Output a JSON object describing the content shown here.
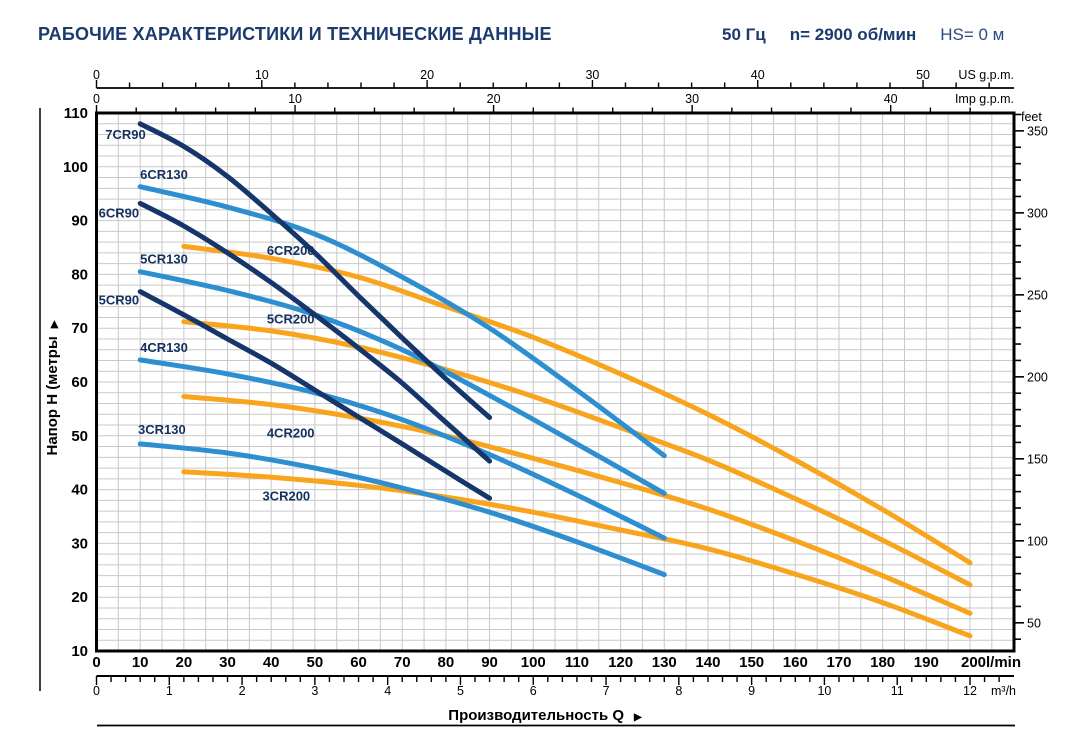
{
  "header": {
    "title": "РАБОЧИЕ ХАРАКТЕРИСТИКИ И ТЕХНИЧЕСКИЕ ДАННЫЕ",
    "frequency": "50 Гц",
    "speed": "n= 2900 об/мин",
    "suction_head": "HS= 0 м"
  },
  "colors": {
    "navy": "#15356B",
    "blue": "#2E8FD0",
    "orange": "#F8A41D",
    "label": "#14305F",
    "grid": "#C9C9C9",
    "axis": "#000000",
    "header_blue": "#1B3A6E"
  },
  "chart_data": {
    "type": "line",
    "xlabel": "Производительность Q",
    "ylabel": "Напор H (метры",
    "arrow": "▶",
    "x_unit": "l/min",
    "xlim_lmin": [
      0,
      210
    ],
    "ylim_m": [
      10,
      110
    ],
    "grid": {
      "x_step_lmin": 5,
      "y_step_m": 2
    },
    "y_axis": {
      "ticks": [
        10,
        20,
        30,
        40,
        50,
        60,
        70,
        80,
        90,
        100,
        110
      ]
    },
    "feet_axis": {
      "label": "feet",
      "major_ticks": [
        50,
        100,
        150,
        200,
        250,
        300,
        350
      ],
      "minor_step": 10,
      "minor_range": [
        40,
        360
      ],
      "m_per_foot": 0.3048
    },
    "us_axis": {
      "label": "US g.p.m.",
      "major_ticks": [
        0,
        10,
        20,
        30,
        40,
        50
      ],
      "minor_step": 2,
      "minor_max": 54,
      "lmin_per_unit": 3.785
    },
    "imp_axis": {
      "label": "Imp g.p.m.",
      "major_ticks": [
        0,
        10,
        20,
        30,
        40
      ],
      "minor_step": 2,
      "minor_max": 44,
      "lmin_per_unit": 4.546
    },
    "lmin_axis": {
      "tick_labels": [
        0,
        10,
        20,
        30,
        40,
        50,
        60,
        70,
        80,
        90,
        100,
        110,
        120,
        130,
        140,
        150,
        160,
        170,
        180,
        190
      ],
      "last_label": "200l/min"
    },
    "m3h_axis": {
      "label": "m³/h",
      "major_ticks": [
        0,
        1,
        2,
        3,
        4,
        5,
        6,
        7,
        8,
        9,
        10,
        11,
        12
      ],
      "minor_step": 0.2,
      "minor_max": 12.4,
      "lmin_per_unit": 16.6667
    },
    "series": [
      {
        "name": "3CR200",
        "color": "orange",
        "label_pos": [
          38,
          38.0
        ],
        "points": [
          [
            20,
            43.3
          ],
          [
            40,
            42.3
          ],
          [
            60,
            40.8
          ],
          [
            80,
            38.6
          ],
          [
            100,
            35.8
          ],
          [
            120,
            32.5
          ],
          [
            140,
            29
          ],
          [
            160,
            24.3
          ],
          [
            180,
            19
          ],
          [
            200,
            12.8
          ]
        ]
      },
      {
        "name": "4CR200",
        "color": "orange",
        "label_pos": [
          39,
          49.7
        ],
        "points": [
          [
            20,
            57.3
          ],
          [
            40,
            55.8
          ],
          [
            60,
            53.3
          ],
          [
            80,
            50
          ],
          [
            100,
            45.8
          ],
          [
            120,
            41.3
          ],
          [
            140,
            36.4
          ],
          [
            160,
            30.5
          ],
          [
            180,
            24
          ],
          [
            200,
            17
          ]
        ]
      },
      {
        "name": "5CR200",
        "color": "orange",
        "label_pos": [
          39,
          70.9
        ],
        "points": [
          [
            20,
            71.2
          ],
          [
            40,
            69.5
          ],
          [
            60,
            66.5
          ],
          [
            80,
            62.3
          ],
          [
            100,
            57.3
          ],
          [
            120,
            51.5
          ],
          [
            140,
            45.5
          ],
          [
            160,
            38.3
          ],
          [
            180,
            30.6
          ],
          [
            200,
            22.3
          ]
        ]
      },
      {
        "name": "6CR200",
        "color": "orange",
        "label_pos": [
          39,
          83.6
        ],
        "points": [
          [
            20,
            85.2
          ],
          [
            40,
            83
          ],
          [
            60,
            79.5
          ],
          [
            80,
            74
          ],
          [
            100,
            68.3
          ],
          [
            120,
            61.5
          ],
          [
            140,
            54
          ],
          [
            160,
            45.5
          ],
          [
            180,
            36.3
          ],
          [
            200,
            26.4
          ]
        ]
      },
      {
        "name": "3CR130",
        "color": "blue",
        "label_pos": [
          9.5,
          50.3
        ],
        "points": [
          [
            10,
            48.5
          ],
          [
            30,
            46.8
          ],
          [
            50,
            44
          ],
          [
            70,
            40.3
          ],
          [
            90,
            35.8
          ],
          [
            110,
            30.3
          ],
          [
            130,
            24.2
          ]
        ]
      },
      {
        "name": "4CR130",
        "color": "blue",
        "label_pos": [
          10,
          65.6
        ],
        "points": [
          [
            10,
            64.1
          ],
          [
            30,
            61.5
          ],
          [
            50,
            58
          ],
          [
            70,
            53
          ],
          [
            90,
            46.5
          ],
          [
            110,
            39
          ],
          [
            130,
            31
          ]
        ]
      },
      {
        "name": "5CR130",
        "color": "blue",
        "label_pos": [
          10,
          82.0
        ],
        "points": [
          [
            10,
            80.5
          ],
          [
            30,
            77
          ],
          [
            50,
            72.5
          ],
          [
            70,
            66
          ],
          [
            90,
            57.5
          ],
          [
            110,
            48.5
          ],
          [
            130,
            39.3
          ]
        ]
      },
      {
        "name": "6CR130",
        "color": "blue",
        "label_pos": [
          10,
          97.7
        ],
        "points": [
          [
            10,
            96.3
          ],
          [
            30,
            92.5
          ],
          [
            50,
            87.5
          ],
          [
            70,
            79.5
          ],
          [
            90,
            70
          ],
          [
            110,
            58.5
          ],
          [
            130,
            46.3
          ]
        ]
      },
      {
        "name": "5CR90",
        "color": "navy",
        "label_pos": [
          0.5,
          74.4
        ],
        "points": [
          [
            10,
            76.8
          ],
          [
            20,
            72.5
          ],
          [
            30,
            68
          ],
          [
            40,
            63.5
          ],
          [
            50,
            58.5
          ],
          [
            60,
            53.5
          ],
          [
            70,
            48.5
          ],
          [
            80,
            43.4
          ],
          [
            90,
            38.4
          ]
        ]
      },
      {
        "name": "6CR90",
        "color": "navy",
        "label_pos": [
          0.5,
          90.6
        ],
        "points": [
          [
            10,
            93.2
          ],
          [
            20,
            89
          ],
          [
            30,
            84
          ],
          [
            40,
            78.5
          ],
          [
            50,
            72.5
          ],
          [
            60,
            66.3
          ],
          [
            70,
            59.8
          ],
          [
            80,
            52.5
          ],
          [
            90,
            45.3
          ]
        ]
      },
      {
        "name": "7CR90",
        "color": "navy",
        "label_pos": [
          2,
          105.2
        ],
        "points": [
          [
            10,
            108
          ],
          [
            20,
            103.8
          ],
          [
            30,
            98.2
          ],
          [
            40,
            91.3
          ],
          [
            50,
            84
          ],
          [
            60,
            76
          ],
          [
            70,
            68.2
          ],
          [
            80,
            60.6
          ],
          [
            90,
            53.4
          ]
        ]
      }
    ]
  }
}
